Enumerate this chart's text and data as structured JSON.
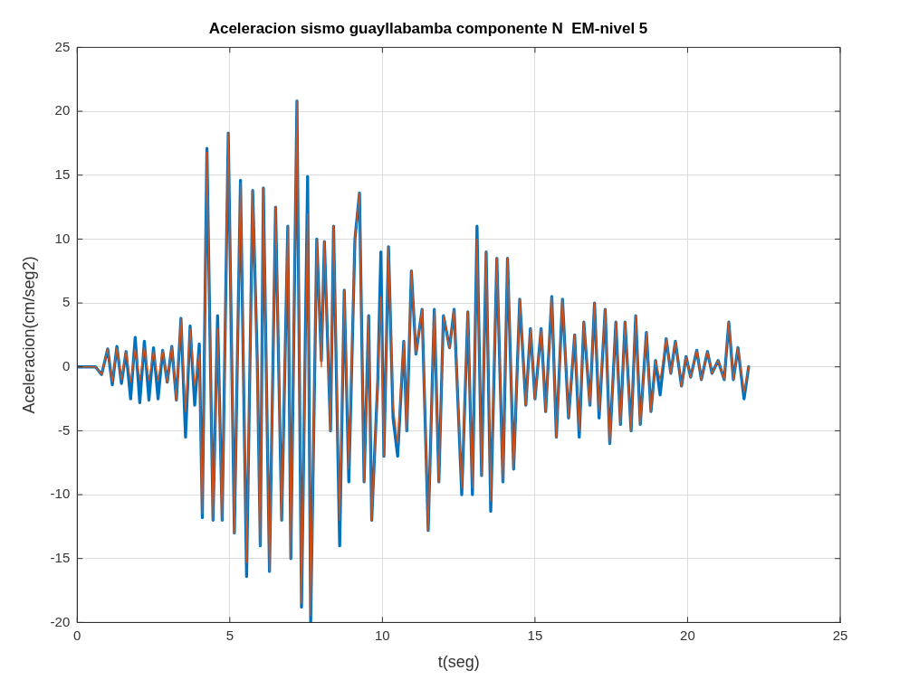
{
  "chart_data": {
    "type": "line",
    "title": "Aceleracion sismo guayllabamba componente N  EM-nivel 5",
    "xlabel": "t(seg)",
    "ylabel": "Aceleracion(cm/seg2)",
    "x": [
      0,
      0.6,
      0.8,
      1.0,
      1.15,
      1.3,
      1.45,
      1.6,
      1.75,
      1.9,
      2.05,
      2.2,
      2.35,
      2.5,
      2.65,
      2.8,
      2.95,
      3.1,
      3.25,
      3.4,
      3.55,
      3.7,
      3.85,
      4.0,
      4.1,
      4.25,
      4.45,
      4.6,
      4.75,
      4.95,
      5.15,
      5.35,
      5.55,
      5.75,
      5.9,
      6.0,
      6.1,
      6.3,
      6.5,
      6.7,
      6.9,
      7.0,
      7.2,
      7.35,
      7.55,
      7.65,
      7.85,
      8.0,
      8.1,
      8.3,
      8.4,
      8.6,
      8.75,
      8.9,
      9.1,
      9.25,
      9.4,
      9.55,
      9.65,
      9.85,
      9.95,
      10.05,
      10.2,
      10.35,
      10.5,
      10.7,
      10.8,
      10.95,
      11.1,
      11.3,
      11.5,
      11.7,
      11.85,
      12.0,
      12.2,
      12.35,
      12.6,
      12.8,
      12.95,
      13.1,
      13.25,
      13.4,
      13.55,
      13.75,
      13.95,
      14.1,
      14.3,
      14.5,
      14.7,
      14.85,
      15.0,
      15.2,
      15.35,
      15.55,
      15.7,
      15.9,
      16.1,
      16.3,
      16.45,
      16.6,
      16.8,
      16.95,
      17.1,
      17.3,
      17.45,
      17.65,
      17.8,
      17.95,
      18.15,
      18.3,
      18.45,
      18.65,
      18.8,
      18.95,
      19.1,
      19.3,
      19.45,
      19.6,
      19.8,
      19.95,
      20.1,
      20.3,
      20.45,
      20.65,
      20.8,
      21.0,
      21.2,
      21.35,
      21.5,
      21.65,
      21.85,
      22.0
    ],
    "series": [
      {
        "color": "#0072bd",
        "values": [
          0,
          0,
          -0.6,
          1.4,
          -1.4,
          1.6,
          -1.3,
          1.2,
          -2.5,
          2.3,
          -2.8,
          2.0,
          -2.6,
          1.5,
          -2.5,
          1.3,
          -1.2,
          1.6,
          -2.6,
          3.8,
          -5.5,
          3.2,
          -3.0,
          1.8,
          -11.8,
          17.1,
          -12,
          4.0,
          -12,
          18.3,
          -13,
          14.6,
          -16.4,
          13.8,
          0.5,
          -14,
          14,
          -16,
          12.5,
          -12,
          11,
          -15,
          20.8,
          -18.8,
          14.9,
          -20,
          10,
          0.5,
          9.8,
          -5,
          11,
          -14,
          6,
          -9,
          10,
          13.6,
          -9,
          4,
          -12,
          -1,
          9,
          -7,
          9.4,
          -4,
          -7,
          2,
          -5,
          7.5,
          1,
          4.5,
          -12.8,
          4.5,
          -9,
          4,
          1.5,
          4.5,
          -10,
          4.3,
          -10,
          11,
          -8.5,
          9,
          -11.3,
          8.5,
          -9,
          8.5,
          -8,
          5.3,
          -3,
          3,
          -2.5,
          3,
          -3.5,
          5.5,
          -5.5,
          5.3,
          -4,
          2.5,
          -5.5,
          3.5,
          -3,
          5,
          -4,
          4.5,
          -6,
          3.5,
          -4.5,
          3.5,
          -5,
          4,
          -4.5,
          2.7,
          -3.5,
          0.5,
          -2.2,
          2.2,
          -0.5,
          2,
          -1.5,
          0.8,
          -0.8,
          1.3,
          -1,
          1.2,
          -0.5,
          0.5,
          -1,
          3.5,
          -1,
          1.5,
          -2.5,
          0
        ]
      },
      {
        "color": "#d95319",
        "values": [
          0,
          0,
          -0.6,
          1.4,
          -1.2,
          1.5,
          -1.0,
          1.2,
          -1.2,
          1.4,
          -1.0,
          1.5,
          -1.0,
          1.2,
          -1.0,
          1.3,
          -1.2,
          1.6,
          -2.6,
          3.8,
          -3.5,
          3.0,
          -1.5,
          1.0,
          -11.5,
          16.8,
          -12,
          3.0,
          -12,
          18.3,
          -13,
          14.4,
          -15.3,
          13.8,
          0,
          -14,
          14,
          -16,
          12.5,
          -12,
          11,
          -15,
          20.8,
          -18.5,
          12,
          -19.5,
          10,
          0,
          9.8,
          -5,
          11,
          -12,
          6,
          -8,
          10,
          13.6,
          -9,
          4,
          -12,
          -1,
          5.5,
          -7,
          9.4,
          -3,
          -6,
          2,
          -5,
          7.5,
          1,
          4.5,
          -12.8,
          4.5,
          -9,
          4,
          1.5,
          4.5,
          -9.5,
          4.3,
          -9.5,
          10,
          -8.5,
          9,
          -10.5,
          8.5,
          -9,
          8.5,
          -8,
          5.3,
          -3,
          3,
          -2.5,
          3,
          -3.5,
          5.5,
          -5.5,
          5.3,
          -4,
          2.5,
          -5,
          3.5,
          -3,
          5,
          -3.5,
          4.5,
          -6,
          3.5,
          -4.5,
          3.5,
          -5,
          4,
          -4.5,
          2.7,
          -3.5,
          0.5,
          -1,
          2.2,
          -0.5,
          2,
          -1.5,
          0.8,
          -0.8,
          1.3,
          -1,
          1.2,
          -0.5,
          0.5,
          -1,
          3.5,
          -1,
          1.5,
          -2.0,
          0
        ]
      }
    ],
    "xlim": [
      0,
      25
    ],
    "xticks": [
      0,
      5,
      10,
      15,
      20,
      25
    ],
    "ylim": [
      -20,
      25
    ],
    "yticks": [
      -20,
      -15,
      -10,
      -5,
      0,
      5,
      10,
      15,
      20,
      25
    ],
    "grid": true,
    "legend": false,
    "marker": "none",
    "line_style": "solid"
  }
}
